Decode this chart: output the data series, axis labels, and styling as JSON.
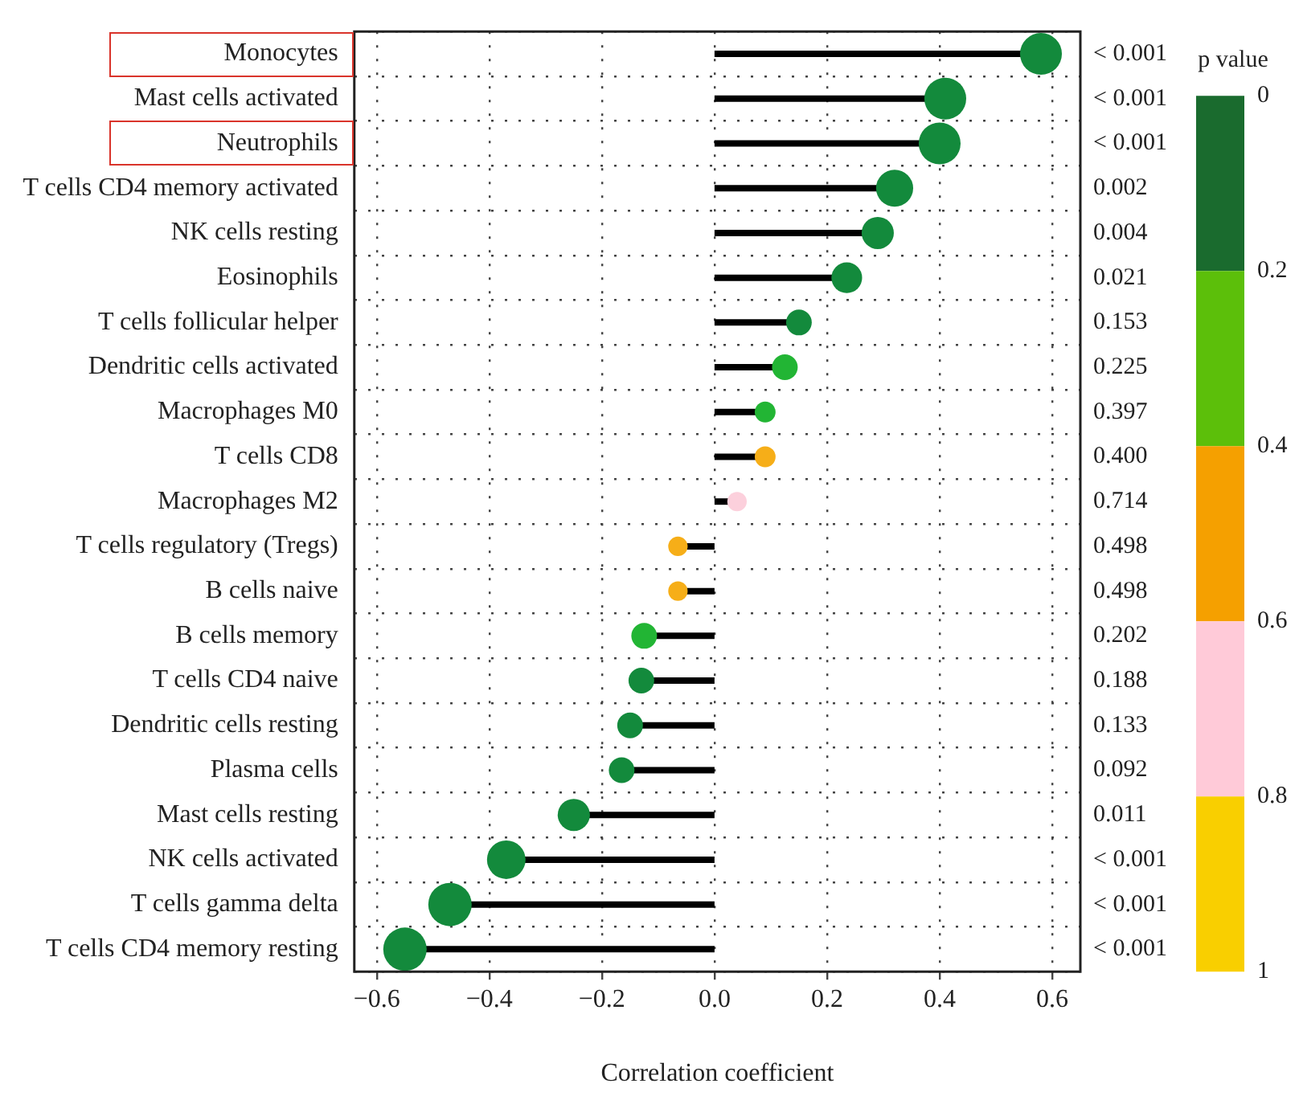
{
  "chart_data": {
    "type": "lollipop",
    "orientation": "horizontal",
    "xlabel": "Correlation coefficient",
    "clabel": "p value",
    "categories": [
      "Monocytes",
      "Mast cells activated",
      "Neutrophils",
      "T cells CD4 memory activated",
      "NK cells resting",
      "Eosinophils",
      "T cells follicular helper",
      "Dendritic cells activated",
      "Macrophages M0",
      "T cells CD8",
      "Macrophages M2",
      "T cells regulatory (Tregs)",
      "B cells naive",
      "B cells memory",
      "T cells CD4 naive",
      "Dendritic cells resting",
      "Plasma cells",
      "Mast cells resting",
      "NK cells activated",
      "T cells gamma delta",
      "T cells CD4 memory resting"
    ],
    "values": [
      0.58,
      0.41,
      0.4,
      0.32,
      0.29,
      0.235,
      0.15,
      0.125,
      0.09,
      0.09,
      0.04,
      -0.065,
      -0.065,
      -0.125,
      -0.13,
      -0.15,
      -0.165,
      -0.25,
      -0.37,
      -0.47,
      -0.55
    ],
    "colors": [
      "#138a3c",
      "#138a3c",
      "#138a3c",
      "#138a3c",
      "#138a3c",
      "#138a3c",
      "#138a3c",
      "#22b534",
      "#22b534",
      "#f6ae18",
      "#fcd0dc",
      "#f6ae18",
      "#f6ae18",
      "#22b534",
      "#138a3c",
      "#138a3c",
      "#138a3c",
      "#138a3c",
      "#138a3c",
      "#138a3c",
      "#138a3c"
    ],
    "sizes": [
      0.93,
      0.93,
      0.93,
      0.73,
      0.55,
      0.5,
      0.35,
      0.35,
      0.23,
      0.23,
      0.2,
      0.2,
      0.2,
      0.35,
      0.35,
      0.35,
      0.35,
      0.55,
      0.79,
      1,
      1
    ],
    "xlim": [
      -0.64,
      0.65
    ],
    "xticks": [
      {
        "value": -0.6,
        "label": "−0.6"
      },
      {
        "value": -0.4,
        "label": "−0.4"
      },
      {
        "value": -0.2,
        "label": "−0.2"
      },
      {
        "value": 0,
        "label": "0.0"
      },
      {
        "value": 0.2,
        "label": "0.2"
      },
      {
        "value": 0.4,
        "label": "0.4"
      },
      {
        "value": 0.6,
        "label": "0.6"
      }
    ],
    "clim": [
      0,
      1
    ],
    "cticks": [
      0,
      0.2,
      0.4,
      0.6,
      0.8,
      1
    ],
    "annotations": [
      "< 0.001",
      "< 0.001",
      "< 0.001",
      "0.002",
      "0.004",
      "0.021",
      "0.153",
      "0.225",
      "0.397",
      "0.400",
      "0.714",
      "0.498",
      "0.498",
      "0.202",
      "0.188",
      "0.133",
      "0.092",
      "0.011",
      "< 0.001",
      "< 0.001",
      "< 0.001"
    ],
    "grid": true,
    "marker": "circle",
    "legend": false
  }
}
